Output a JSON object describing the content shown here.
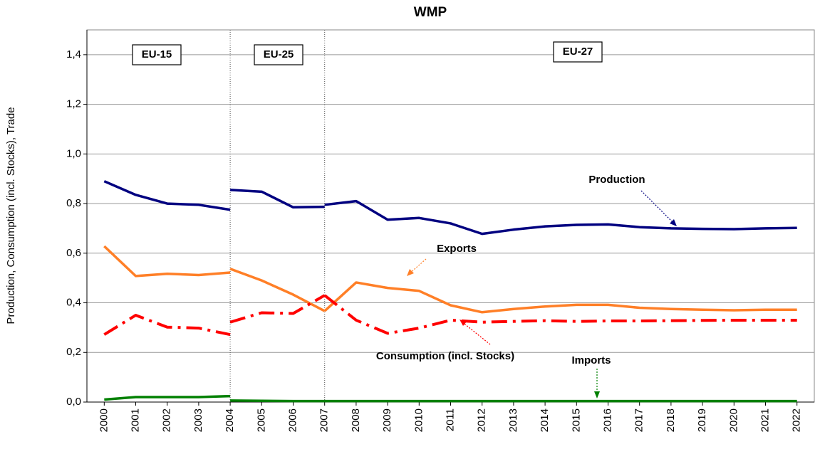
{
  "chart_data": {
    "type": "line",
    "title": "WMP",
    "y_label": "Production, Consumption (incl. Stocks), Trade",
    "x": [
      2000,
      2001,
      2002,
      2003,
      2004,
      null,
      2004,
      2005,
      2006,
      2007,
      null,
      2007,
      2008,
      2009,
      2010,
      2011,
      2012,
      2013,
      2014,
      2015,
      2016,
      2017,
      2018,
      2019,
      2020,
      2021,
      2022
    ],
    "series": [
      {
        "name": "Production",
        "color": "#000080",
        "dashed": false,
        "values": [
          0.89,
          0.835,
          0.8,
          0.795,
          0.775,
          null,
          0.855,
          0.848,
          0.785,
          0.787,
          null,
          0.795,
          0.81,
          0.735,
          0.742,
          0.72,
          0.678,
          0.695,
          0.708,
          0.714,
          0.716,
          0.705,
          0.7,
          0.698,
          0.697,
          0.7,
          0.702
        ]
      },
      {
        "name": "Exports",
        "color": "#ff7f27",
        "dashed": false,
        "values": [
          0.628,
          0.508,
          0.517,
          0.512,
          0.522,
          null,
          0.537,
          0.49,
          0.433,
          0.367,
          null,
          0.367,
          0.482,
          0.46,
          0.448,
          0.39,
          0.362,
          0.375,
          0.385,
          0.392,
          0.392,
          0.38,
          0.375,
          0.372,
          0.37,
          0.372,
          0.372
        ]
      },
      {
        "name": "Consumption (incl. Stocks)",
        "color": "#ff0000",
        "dashed": true,
        "values": [
          0.272,
          0.35,
          0.302,
          0.298,
          0.272,
          null,
          0.322,
          0.36,
          0.357,
          0.43,
          null,
          0.43,
          0.33,
          0.277,
          0.298,
          0.33,
          0.322,
          0.325,
          0.328,
          0.325,
          0.327,
          0.327,
          0.328,
          0.329,
          0.33,
          0.33,
          0.33
        ]
      },
      {
        "name": "Imports",
        "color": "#008000",
        "dashed": false,
        "values": [
          0.01,
          0.02,
          0.02,
          0.02,
          0.024,
          null,
          0.006,
          0.005,
          0.004,
          0.004,
          null,
          0.004,
          0.004,
          0.004,
          0.004,
          0.004,
          0.004,
          0.004,
          0.004,
          0.004,
          0.004,
          0.004,
          0.004,
          0.004,
          0.004,
          0.004,
          0.004
        ]
      }
    ],
    "annotations": [
      "EU-15",
      "EU-25",
      "EU-27"
    ],
    "xlim": [
      1999.45,
      2022.55
    ],
    "xticks": [
      2000,
      2001,
      2002,
      2003,
      2004,
      2005,
      2006,
      2007,
      2008,
      2009,
      2010,
      2011,
      2012,
      2013,
      2014,
      2015,
      2016,
      2017,
      2018,
      2019,
      2020,
      2021,
      2022
    ],
    "ylim": [
      0,
      1.5
    ],
    "yticks": [
      {
        "value": 0,
        "label": "0,0"
      },
      {
        "value": 0.2,
        "label": "0,2"
      },
      {
        "value": 0.4,
        "label": "0,4"
      },
      {
        "value": 0.6,
        "label": "0,6"
      },
      {
        "value": 0.8,
        "label": "0,8"
      },
      {
        "value": 1.0,
        "label": "1,0"
      },
      {
        "value": 1.2,
        "label": "1,2"
      },
      {
        "value": 1.4,
        "label": "1,4"
      }
    ],
    "grid": true
  }
}
